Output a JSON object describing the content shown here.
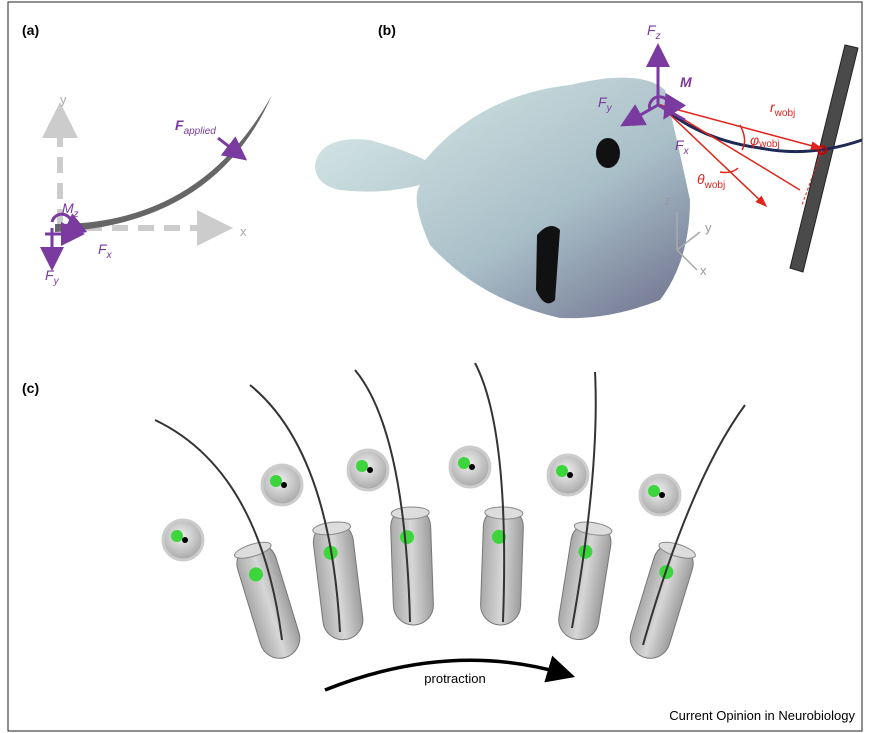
{
  "panels": {
    "a": {
      "label": "(a)",
      "axis_y": "y",
      "axis_x": "x",
      "f_applied": {
        "main": "F",
        "sub": "applied"
      },
      "m_z": {
        "main": "M",
        "sub": "z"
      },
      "f_x": {
        "main": "F",
        "sub": "x"
      },
      "f_y": {
        "main": "F",
        "sub": "y"
      }
    },
    "b": {
      "label": "(b)",
      "f_z": {
        "main": "F",
        "sub": "z"
      },
      "m": "M",
      "f_y": {
        "main": "F",
        "sub": "y"
      },
      "f_x": {
        "main": "F",
        "sub": "x"
      },
      "r_wobj": {
        "main": "r",
        "sub": "wobj"
      },
      "phi_wobj": {
        "main": "φ",
        "sub": "wobj"
      },
      "theta_wobj": {
        "main": "θ",
        "sub": "wobj"
      },
      "axes": {
        "z": "z",
        "y": "y",
        "x": "x"
      }
    },
    "c": {
      "label": "(c)",
      "arrow_label": "protraction"
    }
  },
  "credit": "Current Opinion in Neurobiology"
}
